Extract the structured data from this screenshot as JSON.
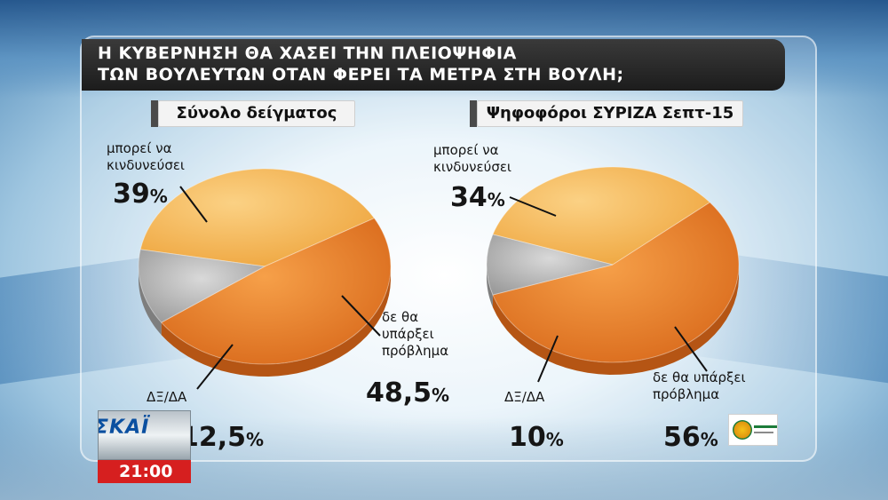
{
  "title": {
    "line1": "Η ΚΥΒΕΡΝΗΣΗ ΘΑ ΧΑΣΕΙ ΤΗΝ ΠΛΕΙΟΨΗΦΙΑ",
    "line2": "ΤΩΝ ΒΟΥΛΕΥΤΩΝ ΟΤΑΝ ΦΕΡΕΙ ΤΑ ΜΕΤΡΑ ΣΤΗ ΒΟΥΛΗ;"
  },
  "broadcast": {
    "channel_logo_text": "ΣΚΑΪ",
    "time": "21:00"
  },
  "colors": {
    "orange": "#e07a1e",
    "light_orange": "#f2b64e",
    "gray": "#a8a8a8",
    "clock_red": "#d61f1f"
  },
  "chart_data": [
    {
      "type": "pie",
      "title": "Σύνολο δείγματος",
      "slices": [
        {
          "label_lines": [
            "μπορεί να",
            "κινδυνεύσει"
          ],
          "value": 39,
          "value_text": "39",
          "color": "#f2b64e"
        },
        {
          "label_lines": [
            "δε θα",
            "υπάρξει",
            "πρόβλημα"
          ],
          "value": 48.5,
          "value_text": "48,5",
          "color": "#e07a1e"
        },
        {
          "label_lines": [
            "ΔΞ/ΔΑ"
          ],
          "value": 12.5,
          "value_text": "12,5",
          "color": "#a8a8a8"
        }
      ]
    },
    {
      "type": "pie",
      "title": "Ψηφοφόροι ΣΥΡΙΖΑ Σεπτ-15",
      "slices": [
        {
          "label_lines": [
            "μπορεί να",
            "κινδυνεύσει"
          ],
          "value": 34,
          "value_text": "34",
          "color": "#f2b64e"
        },
        {
          "label_lines": [
            "δε θα υπάρξει",
            "πρόβλημα"
          ],
          "value": 56,
          "value_text": "56",
          "color": "#e07a1e"
        },
        {
          "label_lines": [
            "ΔΞ/ΔΑ"
          ],
          "value": 10,
          "value_text": "10",
          "color": "#a8a8a8"
        }
      ]
    }
  ]
}
